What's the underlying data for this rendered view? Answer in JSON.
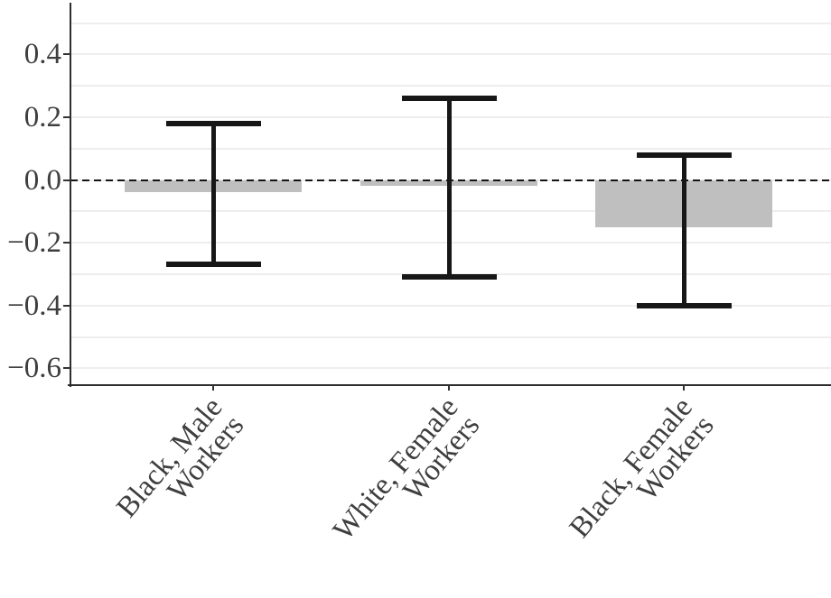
{
  "chart_data": {
    "type": "bar",
    "title": "",
    "xlabel": "",
    "ylabel": "",
    "categories": [
      "Black, Male Workers",
      "White, Female Workers",
      "Black, Female Workers"
    ],
    "category_display_lines": [
      [
        "Black, Male",
        "Workers"
      ],
      [
        "White, Female",
        "Workers"
      ],
      [
        "Black, Female",
        "Workers"
      ]
    ],
    "values": [
      -0.04,
      -0.02,
      -0.15
    ],
    "error_bars": {
      "low": [
        -0.27,
        -0.31,
        -0.4
      ],
      "high": [
        0.18,
        0.26,
        0.08
      ]
    },
    "reference_line_y": 0,
    "y_ticks": [
      0.4,
      0.2,
      0.0,
      -0.2,
      -0.4,
      -0.6
    ],
    "y_tick_labels": [
      "0.4",
      "0.2",
      "0.0",
      "−0.2",
      "−0.4",
      "−0.6"
    ],
    "y_gridlines": [
      0.5,
      0.4,
      0.3,
      0.2,
      0.1,
      0.0,
      -0.1,
      -0.2,
      -0.3,
      -0.4,
      -0.5,
      -0.6
    ],
    "ylim": [
      -0.65,
      0.56
    ],
    "grid": "horizontal",
    "legend": "none",
    "colors": {
      "bar": "#bfbfbf",
      "error_bar": "#171717",
      "reference_line": "#141414",
      "gridline": "#eeeeee",
      "axis": "#2d2d2d",
      "tick_label": "#3e3e3e",
      "background": "#ffffff"
    }
  }
}
